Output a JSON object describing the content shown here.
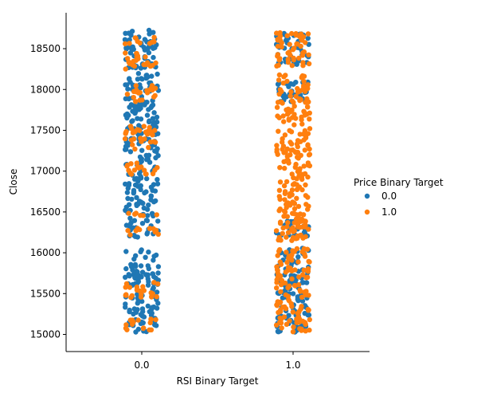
{
  "chart_data": {
    "type": "scatter",
    "subtype": "strip",
    "xlabel": "RSI Binary Target",
    "ylabel": "Close",
    "categories": [
      "0.0",
      "1.0"
    ],
    "ylim": [
      14790,
      18940
    ],
    "yticks": [
      15000,
      15500,
      16000,
      16500,
      17000,
      17500,
      18000,
      18500
    ],
    "grid": false,
    "legend": {
      "title": "Price Binary Target",
      "placement": "right",
      "entries": [
        "0.0",
        "1.0"
      ]
    },
    "colors": {
      "0.0": "#1f77b4",
      "1.0": "#ff7f0e"
    },
    "series": [
      {
        "name": "0.0",
        "category": "0.0",
        "y_ranges": [
          [
            15020,
            16040
          ],
          [
            16180,
            18210
          ],
          [
            18260,
            18740
          ]
        ]
      },
      {
        "name": "0.0",
        "category": "1.0",
        "y_ranges": [
          [
            15020,
            16060
          ],
          [
            16200,
            16400
          ],
          [
            17800,
            18100
          ],
          [
            18300,
            18700
          ]
        ]
      },
      {
        "name": "1.0",
        "category": "0.0",
        "y_ranges": [
          [
            15050,
            15200
          ],
          [
            15450,
            15650
          ],
          [
            16200,
            16300
          ],
          [
            16450,
            16500
          ],
          [
            16950,
            17100
          ],
          [
            17250,
            17550
          ],
          [
            17850,
            18050
          ],
          [
            18250,
            18450
          ],
          [
            18550,
            18640
          ]
        ]
      },
      {
        "name": "1.0",
        "category": "1.0",
        "y_ranges": [
          [
            15000,
            16080
          ],
          [
            16150,
            18200
          ],
          [
            18260,
            18700
          ]
        ]
      }
    ]
  }
}
